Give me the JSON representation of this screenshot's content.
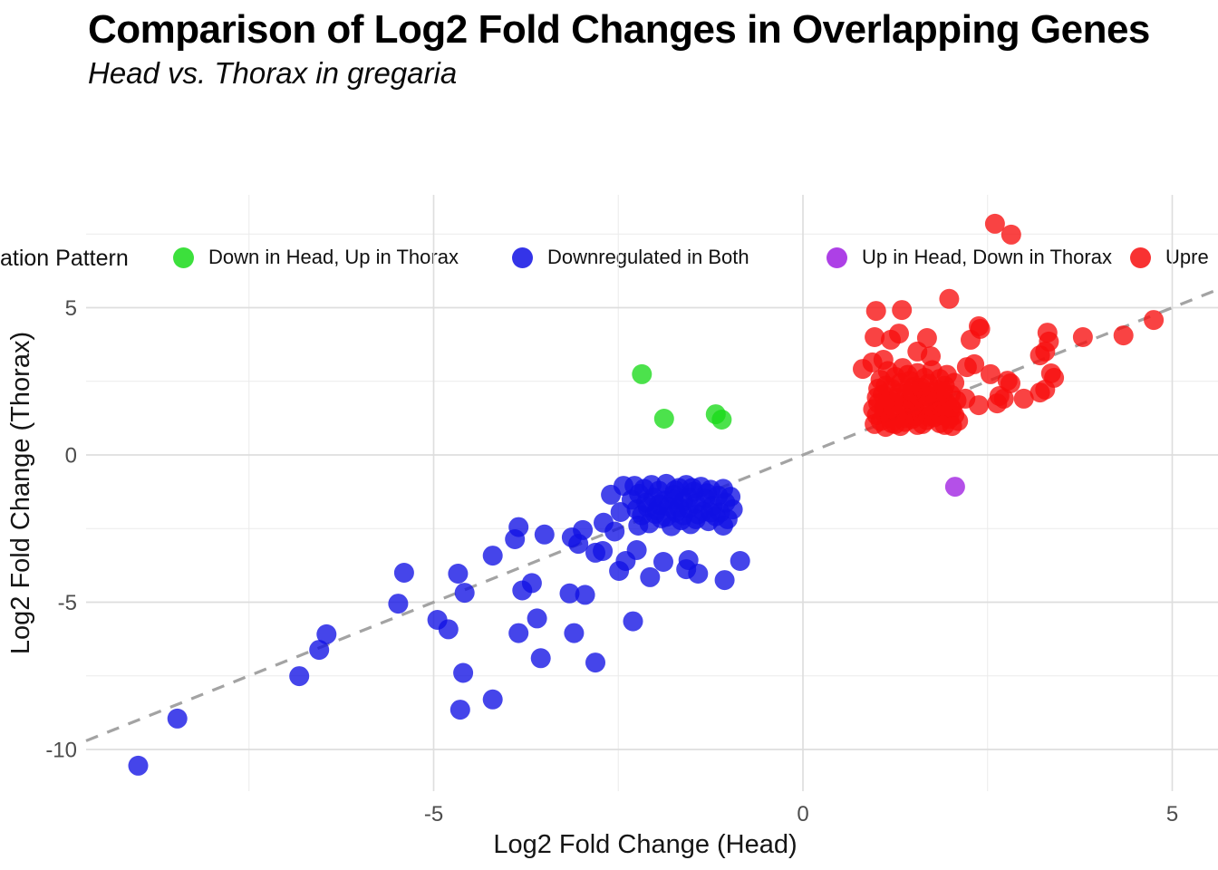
{
  "header": {
    "title": "Comparison of Log2 Fold Changes in Overlapping Genes",
    "subtitle": "Head vs. Thorax in gregaria"
  },
  "legend": {
    "title": "ation Pattern",
    "items": [
      {
        "label": "Down in Head, Up in Thorax",
        "color": "#1ada1a"
      },
      {
        "label": "Downregulated in Both",
        "color": "#1111e4"
      },
      {
        "label": "Up in Head, Down in Thorax",
        "color": "#9f1fe2"
      },
      {
        "label": "Upre",
        "color": "#f70e0e"
      }
    ]
  },
  "chart_data": {
    "type": "scatter",
    "title": "Comparison of Log2 Fold Changes in Overlapping Genes",
    "subtitle": "Head vs. Thorax in gregaria",
    "xlabel": "Log2 Fold Change (Head)",
    "ylabel": "Log2 Fold Change (Thorax)",
    "xlim": [
      -9.8,
      5.6
    ],
    "ylim": [
      -11.3,
      8.8
    ],
    "x_ticks": [
      "-5",
      "0",
      "5"
    ],
    "x_tick_values": [
      -5,
      0,
      5
    ],
    "x_minor_values": [
      -7.5,
      -2.5,
      2.5
    ],
    "y_ticks": [
      "5",
      "0",
      "-5",
      "-10"
    ],
    "y_tick_values": [
      5,
      0,
      -5,
      -10
    ],
    "y_minor_values": [
      7.5,
      2.5,
      -2.5,
      -7.5
    ],
    "grid": true,
    "legend_position": "top",
    "colors": {
      "grid_major": "#dedede",
      "grid_minor": "#ececec",
      "reference_line": "#a3a3a3",
      "tick_label": "#4d4d4d"
    },
    "reference_line": {
      "type": "identity y=x",
      "style": "dashed",
      "color": "#a3a3a3"
    },
    "series": [
      {
        "name": "Downregulated in Both",
        "color": "#1111e4",
        "points": [
          [
            -2.32,
            -1.52
          ],
          [
            -2.28,
            -1.05
          ],
          [
            -2.25,
            -1.85
          ],
          [
            -2.22,
            -1.32
          ],
          [
            -2.18,
            -2.05
          ],
          [
            -2.15,
            -1.15
          ],
          [
            -2.12,
            -1.62
          ],
          [
            -2.08,
            -2.32
          ],
          [
            -2.05,
            -1.02
          ],
          [
            -2.02,
            -1.45
          ],
          [
            -1.98,
            -1.88
          ],
          [
            -1.95,
            -1.22
          ],
          [
            -1.92,
            -2.15
          ],
          [
            -1.88,
            -1.55
          ],
          [
            -1.85,
            -0.98
          ],
          [
            -1.82,
            -1.75
          ],
          [
            -1.78,
            -2.42
          ],
          [
            -1.75,
            -1.35
          ],
          [
            -1.72,
            -1.95
          ],
          [
            -1.68,
            -1.12
          ],
          [
            -1.65,
            -2.22
          ],
          [
            -1.62,
            -1.58
          ],
          [
            -1.58,
            -1.02
          ],
          [
            -1.55,
            -1.82
          ],
          [
            -1.52,
            -2.35
          ],
          [
            -1.48,
            -1.25
          ],
          [
            -1.45,
            -1.65
          ],
          [
            -1.42,
            -2.02
          ],
          [
            -1.38,
            -1.08
          ],
          [
            -1.35,
            -1.92
          ],
          [
            -1.32,
            -1.48
          ],
          [
            -1.28,
            -2.25
          ],
          [
            -1.25,
            -1.18
          ],
          [
            -1.22,
            -1.72
          ],
          [
            -1.18,
            -2.08
          ],
          [
            -1.15,
            -1.38
          ],
          [
            -1.12,
            -1.95
          ],
          [
            -1.08,
            -1.15
          ],
          [
            -1.05,
            -1.62
          ],
          [
            -1.02,
            -2.18
          ],
          [
            -0.98,
            -1.42
          ],
          [
            -0.95,
            -1.85
          ],
          [
            -1.62,
            -2.05
          ],
          [
            -1.85,
            -2.1
          ],
          [
            -2.1,
            -1.78
          ],
          [
            -1.55,
            -1.45
          ],
          [
            -1.3,
            -1.3
          ],
          [
            -1.75,
            -1.52
          ],
          [
            -2.0,
            -2.0
          ],
          [
            -1.45,
            -2.18
          ],
          [
            -1.68,
            -1.78
          ],
          [
            -1.95,
            -1.68
          ],
          [
            -1.25,
            -1.95
          ],
          [
            -1.5,
            -1.12
          ],
          [
            -1.08,
            -2.4
          ],
          [
            -2.6,
            -1.35
          ],
          [
            -2.47,
            -1.94
          ],
          [
            -2.43,
            -1.05
          ],
          [
            -2.49,
            -3.94
          ],
          [
            -2.25,
            -3.23
          ],
          [
            -2.23,
            -2.4
          ],
          [
            -2.07,
            -4.15
          ],
          [
            -1.89,
            -3.63
          ],
          [
            -1.58,
            -3.88
          ],
          [
            -1.55,
            -3.57
          ],
          [
            -1.42,
            -4.03
          ],
          [
            -2.81,
            -3.32
          ],
          [
            -1.73,
            -1.2
          ],
          [
            -2.55,
            -2.6
          ],
          [
            -2.7,
            -2.3
          ],
          [
            -1.06,
            -4.25
          ],
          [
            -0.85,
            -3.6
          ],
          [
            -9.0,
            -10.55
          ],
          [
            -8.47,
            -8.95
          ],
          [
            -6.82,
            -7.51
          ],
          [
            -6.45,
            -6.09
          ],
          [
            -6.55,
            -6.62
          ],
          [
            -5.48,
            -5.05
          ],
          [
            -5.4,
            -4.0
          ],
          [
            -4.95,
            -5.6
          ],
          [
            -4.8,
            -5.92
          ],
          [
            -4.67,
            -4.03
          ],
          [
            -4.58,
            -4.68
          ],
          [
            -4.64,
            -8.65
          ],
          [
            -4.6,
            -7.4
          ],
          [
            -4.2,
            -8.3
          ],
          [
            -4.2,
            -3.42
          ],
          [
            -3.85,
            -6.05
          ],
          [
            -3.6,
            -5.55
          ],
          [
            -3.85,
            -2.45
          ],
          [
            -3.9,
            -2.86
          ],
          [
            -3.8,
            -4.6
          ],
          [
            -3.67,
            -4.35
          ],
          [
            -3.55,
            -6.9
          ],
          [
            -3.5,
            -2.7
          ],
          [
            -3.16,
            -4.7
          ],
          [
            -2.95,
            -4.75
          ],
          [
            -3.1,
            -6.05
          ],
          [
            -2.81,
            -7.05
          ],
          [
            -2.3,
            -5.65
          ],
          [
            -3.13,
            -2.8
          ],
          [
            -3.04,
            -3.02
          ],
          [
            -2.98,
            -2.55
          ],
          [
            -2.71,
            -3.26
          ],
          [
            -2.4,
            -3.6
          ]
        ]
      },
      {
        "name": "Upre",
        "color": "#f70e0e",
        "points": [
          [
            0.97,
            1.05
          ],
          [
            1.0,
            1.35
          ],
          [
            1.02,
            1.75
          ],
          [
            1.05,
            1.15
          ],
          [
            1.08,
            2.05
          ],
          [
            1.1,
            1.45
          ],
          [
            1.12,
            0.95
          ],
          [
            1.15,
            1.85
          ],
          [
            1.18,
            1.25
          ],
          [
            1.2,
            2.25
          ],
          [
            1.22,
            1.55
          ],
          [
            1.25,
            1.05
          ],
          [
            1.28,
            1.95
          ],
          [
            1.3,
            1.38
          ],
          [
            1.32,
            2.45
          ],
          [
            1.35,
            1.68
          ],
          [
            1.38,
            1.12
          ],
          [
            1.4,
            2.08
          ],
          [
            1.42,
            1.48
          ],
          [
            1.45,
            1.88
          ],
          [
            1.48,
            1.22
          ],
          [
            1.5,
            2.32
          ],
          [
            1.52,
            1.58
          ],
          [
            1.55,
            1.02
          ],
          [
            1.58,
            1.95
          ],
          [
            1.6,
            1.42
          ],
          [
            1.62,
            2.15
          ],
          [
            1.65,
            1.72
          ],
          [
            1.68,
            1.18
          ],
          [
            1.7,
            2.42
          ],
          [
            1.72,
            1.52
          ],
          [
            1.75,
            1.98
          ],
          [
            1.78,
            1.28
          ],
          [
            1.8,
            2.22
          ],
          [
            1.82,
            1.62
          ],
          [
            1.85,
            1.08
          ],
          [
            1.88,
            1.92
          ],
          [
            1.9,
            1.45
          ],
          [
            1.92,
            2.35
          ],
          [
            1.95,
            1.75
          ],
          [
            1.98,
            1.22
          ],
          [
            2.0,
            2.05
          ],
          [
            2.02,
            1.55
          ],
          [
            2.05,
            1.35
          ],
          [
            2.08,
            1.85
          ],
          [
            2.1,
            1.15
          ],
          [
            1.05,
            2.55
          ],
          [
            1.25,
            2.65
          ],
          [
            1.45,
            2.52
          ],
          [
            1.65,
            2.62
          ],
          [
            1.85,
            2.58
          ],
          [
            1.15,
            2.85
          ],
          [
            1.35,
            2.95
          ],
          [
            1.55,
            2.78
          ],
          [
            1.75,
            2.88
          ],
          [
            1.95,
            2.72
          ],
          [
            1.02,
            2.25
          ],
          [
            1.3,
            2.1
          ],
          [
            1.5,
            1.7
          ],
          [
            1.7,
            1.3
          ],
          [
            1.9,
            2.15
          ],
          [
            1.1,
            1.62
          ],
          [
            1.2,
            1.08
          ],
          [
            1.4,
            1.25
          ],
          [
            1.6,
            2.28
          ],
          [
            1.8,
            1.78
          ],
          [
            2.0,
            1.62
          ],
          [
            1.0,
            1.95
          ],
          [
            1.48,
            2.15
          ],
          [
            1.68,
            2.0
          ],
          [
            1.88,
            1.35
          ],
          [
            2.05,
            2.45
          ],
          [
            0.95,
            1.55
          ],
          [
            1.22,
            1.78
          ],
          [
            1.52,
            1.32
          ],
          [
            1.78,
            2.12
          ],
          [
            2.02,
            0.98
          ],
          [
            1.32,
            0.98
          ],
          [
            1.62,
            1.05
          ],
          [
            1.92,
            1.02
          ],
          [
            1.12,
            2.35
          ],
          [
            1.42,
            2.72
          ],
          [
            0.99,
            4.89
          ],
          [
            1.34,
            4.92
          ],
          [
            1.98,
            5.3
          ],
          [
            0.97,
            4.0
          ],
          [
            1.19,
            3.91
          ],
          [
            1.3,
            4.12
          ],
          [
            1.68,
            3.97
          ],
          [
            1.55,
            3.51
          ],
          [
            1.73,
            3.35
          ],
          [
            1.09,
            3.23
          ],
          [
            0.94,
            3.14
          ],
          [
            0.81,
            2.92
          ],
          [
            2.6,
            7.85
          ],
          [
            2.82,
            7.48
          ],
          [
            2.4,
            4.28
          ],
          [
            2.38,
            4.37
          ],
          [
            2.27,
            3.91
          ],
          [
            3.31,
            4.15
          ],
          [
            3.33,
            3.85
          ],
          [
            3.79,
            4.0
          ],
          [
            4.34,
            4.06
          ],
          [
            4.75,
            4.58
          ],
          [
            3.28,
            3.51
          ],
          [
            3.21,
            3.38
          ],
          [
            2.32,
            3.08
          ],
          [
            2.22,
            2.98
          ],
          [
            2.54,
            2.74
          ],
          [
            2.77,
            2.52
          ],
          [
            2.81,
            2.43
          ],
          [
            3.36,
            2.77
          ],
          [
            3.4,
            2.62
          ],
          [
            3.28,
            2.22
          ],
          [
            3.21,
            2.12
          ],
          [
            2.66,
            2.0
          ],
          [
            2.72,
            1.91
          ],
          [
            2.99,
            1.91
          ],
          [
            2.38,
            1.69
          ],
          [
            2.2,
            1.91
          ],
          [
            2.63,
            1.75
          ]
        ]
      },
      {
        "name": "Down in Head, Up in Thorax",
        "color": "#1ada1a",
        "points": [
          [
            -2.18,
            2.74
          ],
          [
            -1.88,
            1.23
          ],
          [
            -1.18,
            1.38
          ],
          [
            -1.1,
            1.2
          ]
        ]
      },
      {
        "name": "Up in Head, Down in Thorax",
        "color": "#9f1fe2",
        "points": [
          [
            2.06,
            -1.08
          ]
        ]
      }
    ]
  }
}
